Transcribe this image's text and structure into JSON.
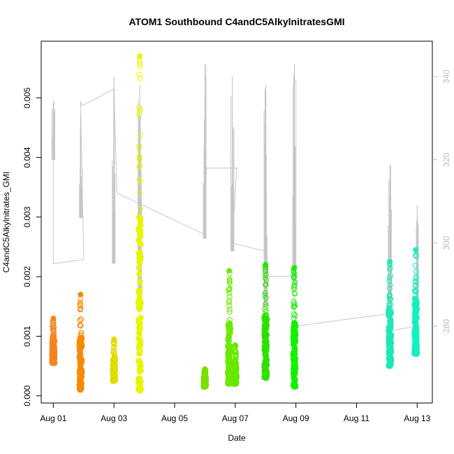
{
  "chart_data": {
    "type": "scatter",
    "title": "ATOM1 Southbound C4andC5AlkylnitratesGMI",
    "xlabel": "Date",
    "ylabel": "C4andC5Alkylnitrates_GMI",
    "x_ticks": [
      "Aug 01",
      "Aug 03",
      "Aug 05",
      "Aug 07",
      "Aug 09",
      "Aug 11",
      "Aug 13"
    ],
    "x_tick_days": [
      1,
      3,
      5,
      7,
      9,
      11,
      13
    ],
    "x_range_days": [
      0.6,
      13.5
    ],
    "ylim": [
      -0.00012,
      0.00595
    ],
    "y_ticks": [
      0.0,
      0.001,
      0.002,
      0.003,
      0.004,
      0.005
    ],
    "y_tick_labels": [
      "0.000",
      "0.001",
      "0.002",
      "0.003",
      "0.004",
      "0.005"
    ],
    "right_axis": {
      "ylim": [
        261.5,
        348.5
      ],
      "ticks": [
        280,
        300,
        320,
        340
      ],
      "color": "#bdbdbd"
    },
    "grid": false,
    "clusters": [
      {
        "day": 1.0,
        "ymin": 0.00055,
        "ymax": 0.0013,
        "color": "#f6831f"
      },
      {
        "day": 1.9,
        "ymin": 0.0001,
        "ymax": 0.0017,
        "color": "#f68a00"
      },
      {
        "day": 3.0,
        "ymin": 0.00025,
        "ymax": 0.00095,
        "color": "#e0dc00"
      },
      {
        "day": 3.85,
        "ymin": 8e-05,
        "ymax": 0.0057,
        "color": "#e8f500"
      },
      {
        "day": 6.0,
        "ymin": 0.00015,
        "ymax": 0.00045,
        "color": "#7ae000"
      },
      {
        "day": 6.8,
        "ymin": 0.0002,
        "ymax": 0.0021,
        "color": "#6ee800"
      },
      {
        "day": 7.0,
        "ymin": 0.0002,
        "ymax": 0.00085,
        "color": "#66e800"
      },
      {
        "day": 8.0,
        "ymin": 0.0003,
        "ymax": 0.0022,
        "color": "#2de000"
      },
      {
        "day": 8.95,
        "ymin": 0.00015,
        "ymax": 0.00215,
        "color": "#14f000"
      },
      {
        "day": 12.1,
        "ymin": 0.0005,
        "ymax": 0.00225,
        "color": "#1ee8b4"
      },
      {
        "day": 12.95,
        "ymin": 0.0007,
        "ymax": 0.00245,
        "color": "#14f0c0"
      }
    ],
    "gray_path": [
      [
        1.0,
        333
      ],
      [
        1.0,
        295
      ],
      [
        2.0,
        296
      ],
      [
        1.9,
        334
      ],
      [
        1.95,
        333
      ],
      [
        3.0,
        337
      ],
      [
        3.1,
        312
      ],
      [
        6.0,
        302
      ],
      [
        6.05,
        318
      ],
      [
        7.05,
        318
      ],
      [
        6.9,
        300
      ],
      [
        8.0,
        298
      ],
      [
        8.1,
        292
      ],
      [
        8.9,
        292
      ],
      [
        9.0,
        280
      ],
      [
        12.1,
        283
      ],
      [
        12.2,
        279
      ],
      [
        13.0,
        280
      ]
    ],
    "gray_spikes": [
      {
        "day": 1.0,
        "low": 320,
        "high": 334
      },
      {
        "day": 1.9,
        "low": 306,
        "high": 331
      },
      {
        "day": 3.0,
        "low": 295,
        "high": 340
      },
      {
        "day": 3.85,
        "low": 285,
        "high": 338
      },
      {
        "day": 6.0,
        "low": 301,
        "high": 343
      },
      {
        "day": 6.9,
        "low": 298,
        "high": 340
      },
      {
        "day": 8.0,
        "low": 285,
        "high": 338
      },
      {
        "day": 8.95,
        "low": 290,
        "high": 343
      },
      {
        "day": 12.1,
        "low": 276,
        "high": 319
      },
      {
        "day": 13.0,
        "low": 283,
        "high": 309
      }
    ]
  }
}
